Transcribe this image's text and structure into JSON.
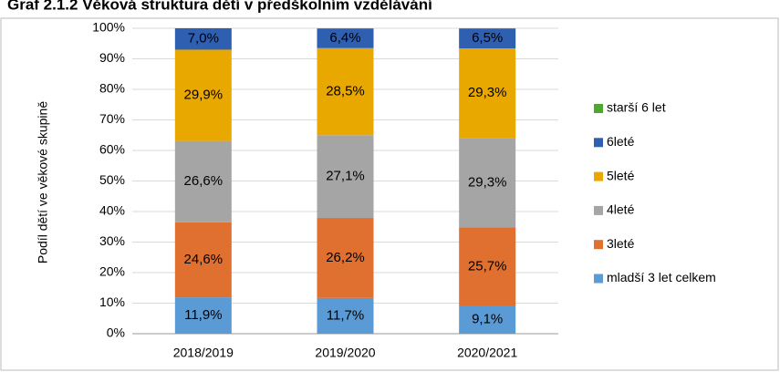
{
  "chart_data": {
    "type": "stacked_bar",
    "title": "Graf 2.1.2 Věková struktura dětí v předškolním vzdělávání",
    "y_label": "Podíl dětí ve věkové skupině",
    "categories": [
      "2018/2019",
      "2019/2020",
      "2020/2021"
    ],
    "series": [
      {
        "name": "mladší 3 let celkem",
        "color": "#5b9bd5",
        "values": [
          11.9,
          11.7,
          9.1
        ],
        "value_labels": [
          "11,9%",
          "11,7%",
          "9,1%"
        ]
      },
      {
        "name": "3leté",
        "color": "#e07030",
        "values": [
          24.6,
          26.2,
          25.7
        ],
        "value_labels": [
          "24,6%",
          "26,2%",
          "25,7%"
        ]
      },
      {
        "name": "4leté",
        "color": "#a5a5a5",
        "values": [
          26.6,
          27.1,
          29.3
        ],
        "value_labels": [
          "26,6%",
          "27,1%",
          "29,3%"
        ]
      },
      {
        "name": "5leté",
        "color": "#e8a800",
        "values": [
          29.9,
          28.5,
          29.3
        ],
        "value_labels": [
          "29,9%",
          "28,5%",
          "29,3%"
        ]
      },
      {
        "name": "6leté",
        "color": "#2e5fb0",
        "values": [
          7.0,
          6.4,
          6.5
        ],
        "value_labels": [
          "7,0%",
          "6,4%",
          "6,5%"
        ]
      },
      {
        "name": "starší 6 let",
        "color": "#4ea72e",
        "values": [
          0,
          0.1,
          0.1
        ]
      }
    ],
    "ylim": [
      0,
      100
    ],
    "yticks": [
      {
        "value": 0,
        "label": "0%"
      },
      {
        "value": 10,
        "label": "10%"
      },
      {
        "value": 20,
        "label": "20%"
      },
      {
        "value": 30,
        "label": "30%"
      },
      {
        "value": 40,
        "label": "40%"
      },
      {
        "value": 50,
        "label": "50%"
      },
      {
        "value": 60,
        "label": "60%"
      },
      {
        "value": 70,
        "label": "70%"
      },
      {
        "value": 80,
        "label": "80%"
      },
      {
        "value": 90,
        "label": "90%"
      },
      {
        "value": 100,
        "label": "100%"
      }
    ],
    "grid": true,
    "legend": "right"
  }
}
